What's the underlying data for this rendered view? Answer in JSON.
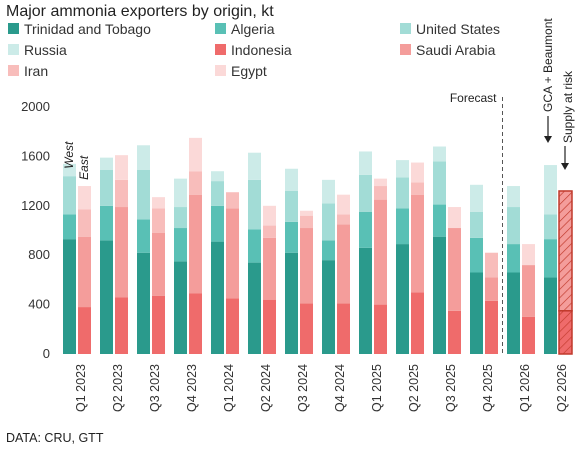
{
  "title": "Major ammonia exporters by origin, kt",
  "source": "DATA: CRU, GTT",
  "colors": {
    "trinidad": "#2a9a8c",
    "algeria": "#59c0b5",
    "united_states": "#a2dcd6",
    "russia": "#ccebe8",
    "indonesia": "#ef6b6b",
    "saudi_arabia": "#f49d9b",
    "iran": "#f8bdbb",
    "egypt": "#fbd9d8",
    "risk_border": "#c0392b"
  },
  "chart_data": {
    "type": "bar",
    "stacked": true,
    "title": "Major ammonia exporters by origin, kt",
    "ylim": [
      0,
      2000
    ],
    "yticks": [
      0,
      400,
      800,
      1200,
      1600,
      2000
    ],
    "categories": [
      "Q1 2023",
      "Q2 2023",
      "Q3 2023",
      "Q4 2023",
      "Q1 2024",
      "Q2 2024",
      "Q3 2024",
      "Q4 2024",
      "Q1 2025",
      "Q2 2025",
      "Q3 2025",
      "Q4 2025",
      "Q1 2026",
      "Q2 2026"
    ],
    "group_labels": [
      "West",
      "East"
    ],
    "west_series": [
      {
        "name": "Trinidad and Tobago",
        "color_key": "trinidad",
        "values": [
          930,
          920,
          820,
          750,
          910,
          740,
          820,
          760,
          860,
          890,
          950,
          660,
          660,
          620
        ]
      },
      {
        "name": "Algeria",
        "color_key": "algeria",
        "values": [
          200,
          280,
          270,
          270,
          290,
          270,
          250,
          160,
          290,
          290,
          260,
          280,
          230,
          310
        ]
      },
      {
        "name": "United States",
        "color_key": "united_states",
        "values": [
          310,
          290,
          400,
          170,
          200,
          400,
          250,
          300,
          300,
          250,
          350,
          210,
          300,
          200
        ]
      },
      {
        "name": "Russia",
        "color_key": "russia",
        "values": [
          100,
          100,
          200,
          230,
          80,
          220,
          180,
          190,
          190,
          140,
          120,
          220,
          170,
          400
        ]
      }
    ],
    "east_series": [
      {
        "name": "Indonesia",
        "color_key": "indonesia",
        "values": [
          380,
          460,
          470,
          490,
          450,
          440,
          410,
          410,
          400,
          500,
          350,
          430,
          300,
          350
        ]
      },
      {
        "name": "Saudi Arabia",
        "color_key": "saudi_arabia",
        "values": [
          570,
          730,
          510,
          800,
          730,
          500,
          610,
          640,
          850,
          790,
          670,
          190,
          420,
          970
        ]
      },
      {
        "name": "Iran",
        "color_key": "iran",
        "values": [
          220,
          220,
          200,
          190,
          130,
          100,
          100,
          80,
          110,
          100,
          0,
          200,
          0,
          0
        ]
      },
      {
        "name": "Egypt",
        "color_key": "egypt",
        "values": [
          190,
          200,
          90,
          270,
          0,
          160,
          40,
          160,
          60,
          160,
          170,
          0,
          170,
          0
        ]
      }
    ],
    "supply_at_risk_quarter": "Q2 2026",
    "annotations": {
      "forecast": "Forecast",
      "gca_beaumont": "GCA + Beaumont",
      "supply_at_risk": "Supply at risk"
    }
  }
}
